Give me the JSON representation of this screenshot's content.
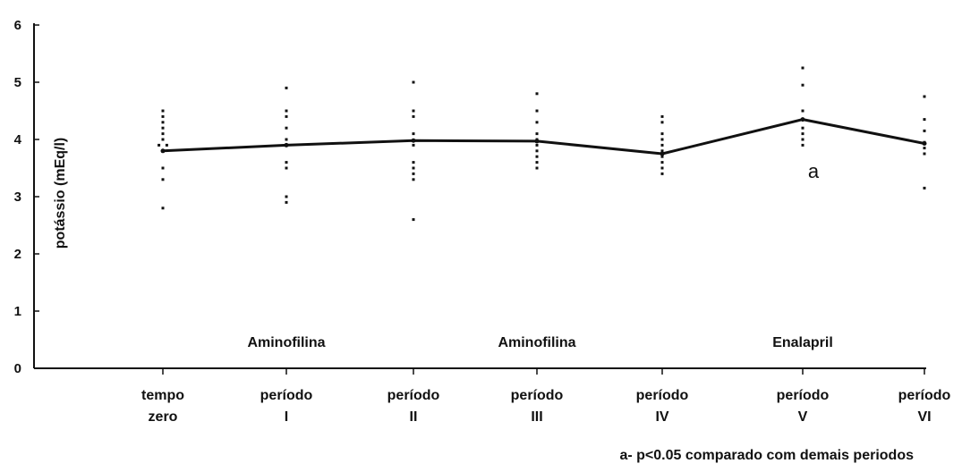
{
  "chart_data": {
    "type": "scatter",
    "ylabel": "potássio (mEq/l)",
    "ylim": [
      0,
      6
    ],
    "yticks": [
      "0",
      "1",
      "2",
      "3",
      "4",
      "5",
      "6"
    ],
    "categories": [
      [
        "tempo",
        "zero"
      ],
      [
        "período",
        "I"
      ],
      [
        "período",
        "II"
      ],
      [
        "período",
        "III"
      ],
      [
        "período",
        "IV"
      ],
      [
        "período",
        "V"
      ],
      [
        "período",
        "VI"
      ]
    ],
    "phase_labels": [
      "Aminofilina",
      "Aminofilina",
      "Enalapril"
    ],
    "mean_line": [
      3.8,
      3.9,
      3.98,
      3.97,
      3.75,
      4.35,
      3.93
    ],
    "individual_points": [
      [
        4.5,
        4.4,
        4.3,
        4.2,
        4.1,
        4.0,
        3.9,
        3.9,
        3.8,
        3.5,
        3.3,
        2.8
      ],
      [
        4.9,
        4.5,
        4.4,
        4.2,
        4.0,
        3.9,
        3.6,
        3.5,
        3.0,
        2.9
      ],
      [
        5.0,
        4.5,
        4.4,
        4.1,
        3.9,
        3.6,
        3.5,
        3.4,
        3.3,
        2.6
      ],
      [
        4.8,
        4.5,
        4.3,
        4.1,
        4.0,
        3.9,
        3.8,
        3.7,
        3.6,
        3.5
      ],
      [
        4.4,
        4.3,
        4.1,
        4.0,
        3.9,
        3.8,
        3.7,
        3.6,
        3.5,
        3.4
      ],
      [
        5.25,
        4.95,
        4.5,
        4.2,
        4.1,
        4.0,
        3.9
      ],
      [
        4.75,
        4.35,
        4.15,
        3.95,
        3.85,
        3.75,
        3.15
      ]
    ],
    "annotation": "a",
    "annotation_category_index": 5,
    "annotation_value": 3.45,
    "footnote": "a- p<0.05 comparado com demais periodos",
    "grid": false,
    "legend": "none"
  }
}
